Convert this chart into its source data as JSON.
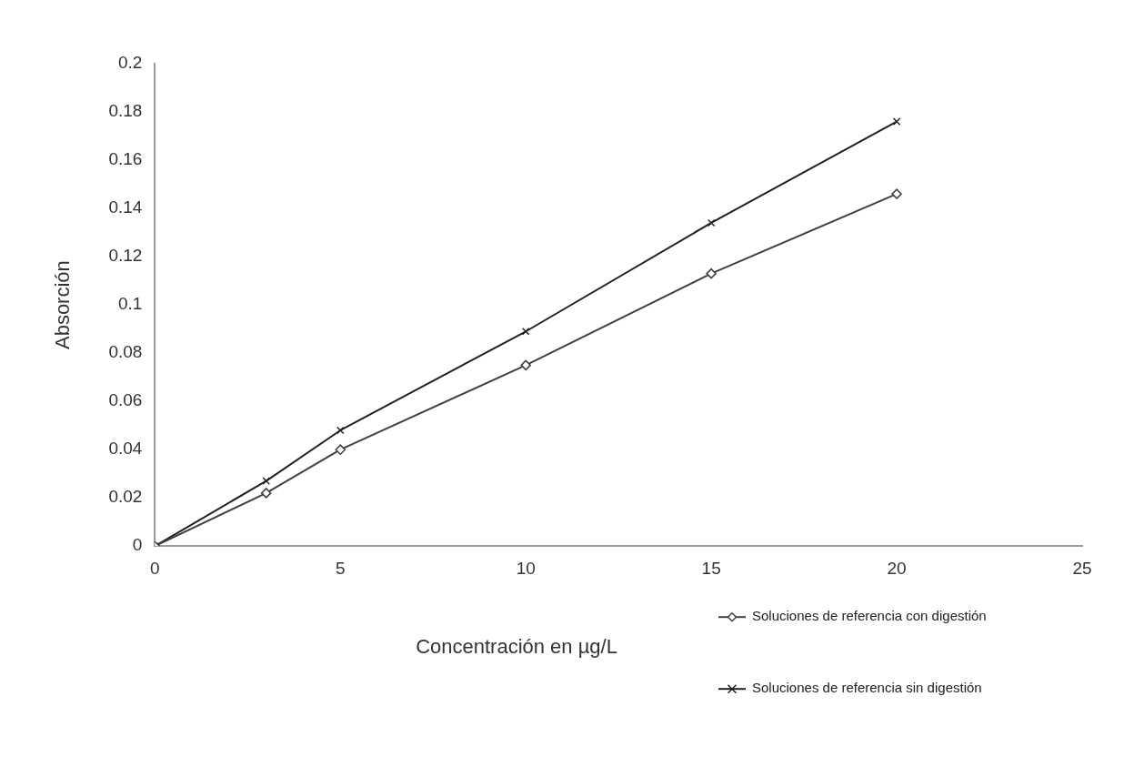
{
  "chart_data": {
    "type": "line",
    "xlabel": "Concentración en µg/L",
    "ylabel": "Absorción",
    "x": [
      0,
      3,
      5,
      10,
      15,
      20
    ],
    "xlim": [
      0,
      25
    ],
    "xticks": [
      0,
      5,
      10,
      15,
      20,
      25
    ],
    "ylim": [
      0,
      0.2
    ],
    "yticks": [
      0,
      0.02,
      0.04,
      0.06,
      0.08,
      0.1,
      0.12,
      0.14,
      0.16,
      0.18,
      0.2
    ],
    "grid": false,
    "legend": "bottom right",
    "series": [
      {
        "name": "Soluciones de referencia con digestión",
        "color": "#404040",
        "marker": "diamond",
        "values": [
          0,
          0.022,
          0.04,
          0.075,
          0.113,
          0.146
        ]
      },
      {
        "name": "Soluciones de referencia sin digestión",
        "color": "#202020",
        "marker": "cross",
        "values": [
          0,
          0.027,
          0.048,
          0.089,
          0.134,
          0.176
        ]
      }
    ]
  }
}
